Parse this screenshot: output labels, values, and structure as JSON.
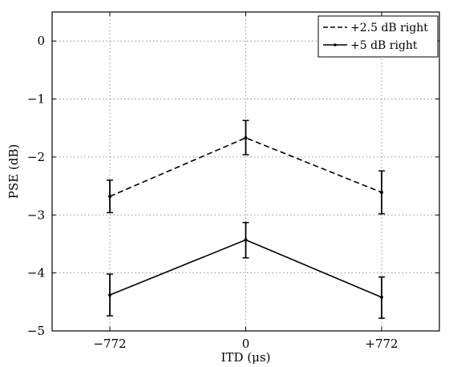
{
  "chart_data": {
    "type": "line",
    "x": [
      -772,
      0,
      772
    ],
    "xtick_labels": [
      "−772",
      "0",
      "+772"
    ],
    "yticks": [
      0,
      -1,
      -2,
      -3,
      -4,
      -5
    ],
    "ytick_labels": [
      "0",
      "−1",
      "−2",
      "−3",
      "−4",
      "−5"
    ],
    "xlim": [
      -1100,
      1100
    ],
    "ylim": [
      -5,
      0.5
    ],
    "xlabel": "ITD (μs)",
    "ylabel": "PSE (dB)",
    "grid": true,
    "legend_position": "top-right",
    "series": [
      {
        "name": "+2.5 dB right",
        "style": "dashed",
        "values": [
          -2.68,
          -1.67,
          -2.61
        ],
        "error_low": [
          -2.96,
          -1.96,
          -2.98
        ],
        "error_high": [
          -2.4,
          -1.37,
          -2.24
        ]
      },
      {
        "name": "+5 dB right",
        "style": "solid",
        "values": [
          -4.38,
          -3.43,
          -4.42
        ],
        "error_low": [
          -4.74,
          -3.74,
          -4.78
        ],
        "error_high": [
          -4.02,
          -3.13,
          -4.07
        ]
      }
    ]
  }
}
